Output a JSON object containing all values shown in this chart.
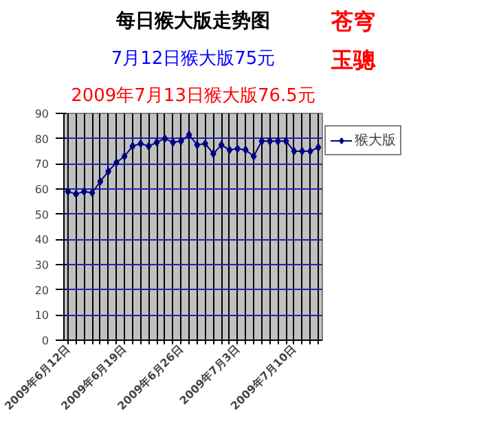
{
  "chart_data": {
    "type": "line",
    "title": "每日猴大版走势图",
    "subtitle": "7月12日猴大版75元",
    "annotations": [
      "2009年7月13日猴大版76.5元",
      "苍穹",
      "玉骢"
    ],
    "x": [
      "2009-06-12",
      "2009-06-13",
      "2009-06-14",
      "2009-06-15",
      "2009-06-16",
      "2009-06-17",
      "2009-06-18",
      "2009-06-19",
      "2009-06-20",
      "2009-06-21",
      "2009-06-22",
      "2009-06-23",
      "2009-06-24",
      "2009-06-25",
      "2009-06-26",
      "2009-06-27",
      "2009-06-28",
      "2009-06-29",
      "2009-06-30",
      "2009-07-01",
      "2009-07-02",
      "2009-07-03",
      "2009-07-04",
      "2009-07-05",
      "2009-07-06",
      "2009-07-07",
      "2009-07-08",
      "2009-07-09",
      "2009-07-10",
      "2009-07-11",
      "2009-07-12",
      "2009-07-13"
    ],
    "xlim": [
      "2009-06-11T12:00",
      "2009-07-13T12:00"
    ],
    "xticks": [
      {
        "value": "2009-06-12",
        "label": "2009年6月12日"
      },
      {
        "value": "2009-06-13",
        "label": null
      },
      {
        "value": "2009-06-14",
        "label": null
      },
      {
        "value": "2009-06-15",
        "label": null
      },
      {
        "value": "2009-06-16",
        "label": null
      },
      {
        "value": "2009-06-17",
        "label": null
      },
      {
        "value": "2009-06-18",
        "label": null
      },
      {
        "value": "2009-06-19",
        "label": "2009年6月19日"
      },
      {
        "value": "2009-06-20",
        "label": null
      },
      {
        "value": "2009-06-21",
        "label": null
      },
      {
        "value": "2009-06-22",
        "label": null
      },
      {
        "value": "2009-06-23",
        "label": null
      },
      {
        "value": "2009-06-24",
        "label": null
      },
      {
        "value": "2009-06-25",
        "label": null
      },
      {
        "value": "2009-06-26",
        "label": "2009年6月26日"
      },
      {
        "value": "2009-06-27",
        "label": null
      },
      {
        "value": "2009-06-28",
        "label": null
      },
      {
        "value": "2009-06-29",
        "label": null
      },
      {
        "value": "2009-06-30",
        "label": null
      },
      {
        "value": "2009-07-01",
        "label": null
      },
      {
        "value": "2009-07-02",
        "label": null
      },
      {
        "value": "2009-07-03",
        "label": "2009年7月3日"
      },
      {
        "value": "2009-07-04",
        "label": null
      },
      {
        "value": "2009-07-05",
        "label": null
      },
      {
        "value": "2009-07-06",
        "label": null
      },
      {
        "value": "2009-07-07",
        "label": null
      },
      {
        "value": "2009-07-08",
        "label": null
      },
      {
        "value": "2009-07-09",
        "label": null
      },
      {
        "value": "2009-07-10",
        "label": "2009年7月10日"
      },
      {
        "value": "2009-07-11",
        "label": null
      },
      {
        "value": "2009-07-12",
        "label": null
      },
      {
        "value": "2009-07-13",
        "label": null
      }
    ],
    "series": [
      {
        "name": "猴大版",
        "color": "#000080",
        "values": [
          59,
          58,
          59,
          58.5,
          63,
          67,
          70.5,
          73,
          77,
          78,
          77,
          78.5,
          80,
          78.5,
          79,
          81.5,
          77.5,
          78,
          74,
          77.5,
          75.5,
          76,
          75.5,
          73,
          79,
          79,
          79,
          79,
          75,
          75,
          75,
          76.5
        ]
      }
    ],
    "ylim": [
      0,
      90
    ],
    "yticks": [
      0,
      10,
      20,
      30,
      40,
      50,
      60,
      70,
      80,
      90
    ],
    "grid": true,
    "legend": "top right",
    "marker": "diamond",
    "line_style": "solid"
  }
}
